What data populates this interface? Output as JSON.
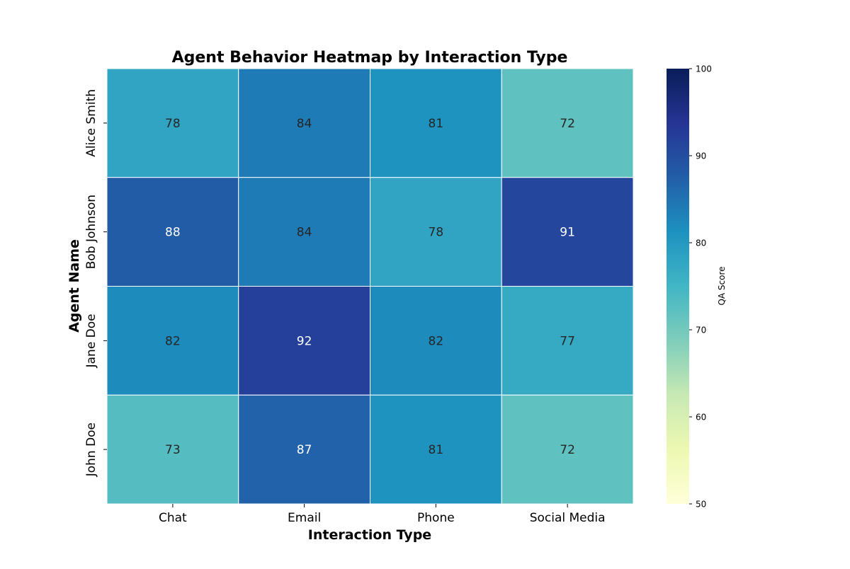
{
  "chart_data": {
    "type": "heatmap",
    "title": "Agent Behavior Heatmap by Interaction Type",
    "xlabel": "Interaction Type",
    "ylabel": "Agent Name",
    "x_categories": [
      "Chat",
      "Email",
      "Phone",
      "Social Media"
    ],
    "y_categories": [
      "Alice Smith",
      "Bob Johnson",
      "Jane Doe",
      "John Doe"
    ],
    "values": [
      [
        78,
        84,
        81,
        72
      ],
      [
        88,
        84,
        78,
        91
      ],
      [
        82,
        92,
        82,
        77
      ],
      [
        73,
        87,
        81,
        72
      ]
    ],
    "colorbar": {
      "label": "QA Score",
      "range": [
        50,
        100
      ],
      "ticks": [
        50,
        60,
        70,
        80,
        90,
        100
      ],
      "colormap": "YlGnBu"
    },
    "annotations": true,
    "legend": "none"
  }
}
